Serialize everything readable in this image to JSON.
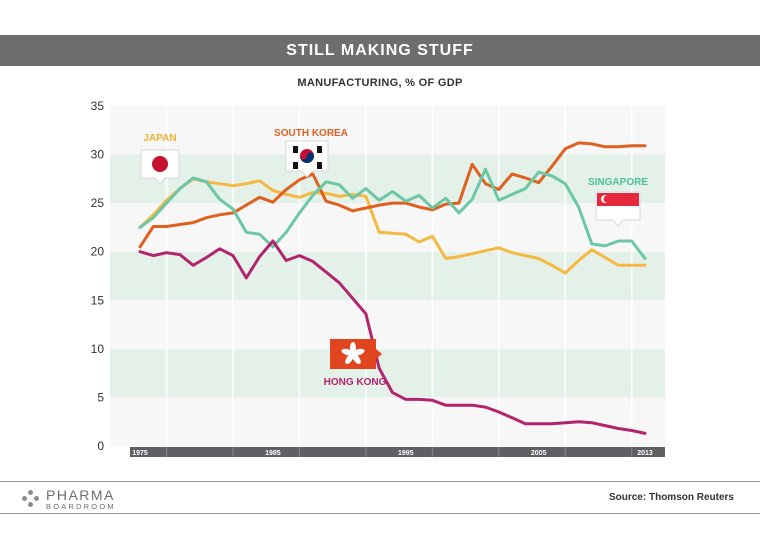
{
  "chart_data": {
    "type": "line",
    "title": "STILL MAKING STUFF",
    "subtitle": "MANUFACTURING, % OF GDP",
    "ylim": [
      0,
      35
    ],
    "yticks": [
      0,
      5,
      10,
      15,
      20,
      25,
      30,
      35
    ],
    "xlim": [
      1975,
      2013
    ],
    "xticks": [
      1975,
      1985,
      1995,
      2005,
      2013
    ],
    "grid": "alternating horizontal bands",
    "series": [
      {
        "name": "JAPAN",
        "color": "#f5b840",
        "x": [
          1975,
          1976,
          1977,
          1978,
          1979,
          1980,
          1981,
          1982,
          1983,
          1984,
          1985,
          1986,
          1987,
          1988,
          1989,
          1990,
          1991,
          1992,
          1993,
          1994,
          1995,
          1996,
          1997,
          1998,
          1999,
          2000,
          2001,
          2002,
          2003,
          2004,
          2005,
          2006,
          2007,
          2008,
          2009,
          2010,
          2011,
          2012,
          2013
        ],
        "values": [
          22.5,
          23.8,
          25.3,
          26.5,
          27.5,
          27.2,
          27,
          26.8,
          27,
          27.3,
          26.3,
          25.9,
          25.6,
          26.1,
          26,
          25.7,
          25.9,
          25.7,
          22,
          21.9,
          21.8,
          21,
          21.6,
          19.3,
          19.5,
          19.8,
          20.1,
          20.4,
          19.9,
          19.6,
          19.3,
          18.6,
          17.8,
          19.1,
          20.2,
          19.4,
          18.6,
          18.6,
          18.6
        ]
      },
      {
        "name": "SOUTH KOREA",
        "color": "#e0601f",
        "x": [
          1975,
          1976,
          1977,
          1978,
          1979,
          1980,
          1981,
          1982,
          1983,
          1984,
          1985,
          1986,
          1987,
          1988,
          1989,
          1990,
          1991,
          1992,
          1993,
          1994,
          1995,
          1996,
          1997,
          1998,
          1999,
          2000,
          2001,
          2002,
          2003,
          2004,
          2005,
          2006,
          2007,
          2008,
          2009,
          2010,
          2011,
          2012,
          2013
        ],
        "values": [
          20.5,
          22.6,
          22.6,
          22.8,
          23,
          23.5,
          23.8,
          24,
          24.8,
          25.6,
          25.1,
          26.4,
          27.4,
          28,
          25.2,
          24.8,
          24.2,
          24.5,
          24.8,
          25,
          25,
          24.6,
          24.3,
          24.9,
          25,
          29,
          27,
          26.4,
          28,
          27.6,
          27.1,
          28.8,
          30.6,
          31.2,
          31.1,
          30.8,
          30.8,
          30.9,
          30.9
        ]
      },
      {
        "name": "SINGAPORE",
        "color": "#6cc7a6",
        "x": [
          1975,
          1976,
          1977,
          1978,
          1979,
          1980,
          1981,
          1982,
          1983,
          1984,
          1985,
          1986,
          1987,
          1988,
          1989,
          1990,
          1991,
          1992,
          1993,
          1994,
          1995,
          1996,
          1997,
          1998,
          1999,
          2000,
          2001,
          2002,
          2003,
          2004,
          2005,
          2006,
          2007,
          2008,
          2009,
          2010,
          2011,
          2012,
          2013
        ],
        "values": [
          22.5,
          23.5,
          25,
          26.5,
          27.6,
          27.2,
          25.4,
          24.4,
          22,
          21.8,
          20.5,
          22,
          24,
          25.8,
          27.2,
          26.9,
          25.5,
          26.5,
          25.3,
          26.2,
          25.2,
          25.8,
          24.5,
          25.5,
          24,
          25.4,
          28.5,
          25.3,
          25.9,
          26.5,
          28.2,
          27.8,
          27,
          24.6,
          20.8,
          20.6,
          21.1,
          21.1,
          19.3
        ]
      },
      {
        "name": "HONG KONG",
        "color": "#b3246e",
        "x": [
          1975,
          1976,
          1977,
          1978,
          1979,
          1980,
          1981,
          1982,
          1983,
          1984,
          1985,
          1986,
          1987,
          1988,
          1989,
          1990,
          1991,
          1992,
          1993,
          1994,
          1995,
          1996,
          1997,
          1998,
          1999,
          2000,
          2001,
          2002,
          2003,
          2004,
          2005,
          2006,
          2007,
          2008,
          2009,
          2010,
          2011,
          2012,
          2013
        ],
        "values": [
          20,
          19.6,
          19.9,
          19.7,
          18.6,
          19.4,
          20.3,
          19.6,
          17.3,
          19.5,
          21.1,
          19.1,
          19.6,
          19,
          17.9,
          16.8,
          15.2,
          13.6,
          8,
          5.5,
          4.8,
          4.8,
          4.7,
          4.2,
          4.2,
          4.2,
          4,
          3.5,
          2.9,
          2.3,
          2.3,
          2.3,
          2.4,
          2.5,
          2.4,
          2.1,
          1.8,
          1.6,
          1.3
        ]
      }
    ]
  },
  "annotations": {
    "japan_label": "JAPAN",
    "south_korea_label": "SOUTH KOREA",
    "singapore_label": "SINGAPORE",
    "hong_kong_label": "HONG KONG"
  },
  "footer": {
    "logo_main": "PHARMA",
    "logo_sub": "BOARDROOM",
    "source": "Source: Thomson Reuters"
  },
  "colors": {
    "band": "#e4f1e8",
    "title_bar": "#6d6e70",
    "axis_bar": "#5f6062"
  }
}
